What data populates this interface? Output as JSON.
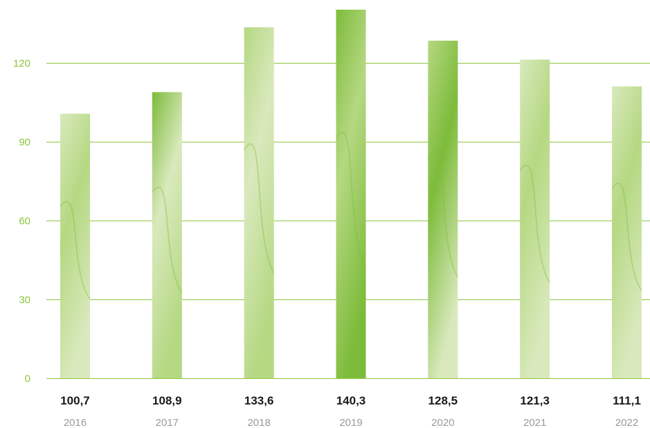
{
  "colors": {
    "gridline": "#8dc63f",
    "ytick_text": "#8dc63f",
    "value_text": "#1a1a1a",
    "year_text": "#9a9a9a",
    "bar_light": "#d9e9bd",
    "bar_mid": "#b5d882",
    "bar_dark": "#7dbb3a"
  },
  "chart_data": {
    "type": "bar",
    "categories": [
      "2016",
      "2017",
      "2018",
      "2019",
      "2020",
      "2021",
      "2022"
    ],
    "values": [
      100.7,
      108.9,
      133.6,
      140.3,
      128.5,
      121.3,
      111.1
    ],
    "value_labels": [
      "100,7",
      "108,9",
      "133,6",
      "140,3",
      "128,5",
      "121,3",
      "111,1"
    ],
    "yticks": [
      0,
      30,
      60,
      90,
      120
    ],
    "ylim": [
      0,
      140.3
    ],
    "grid": true,
    "legend": "none",
    "title": "",
    "xlabel": "",
    "ylabel": ""
  }
}
